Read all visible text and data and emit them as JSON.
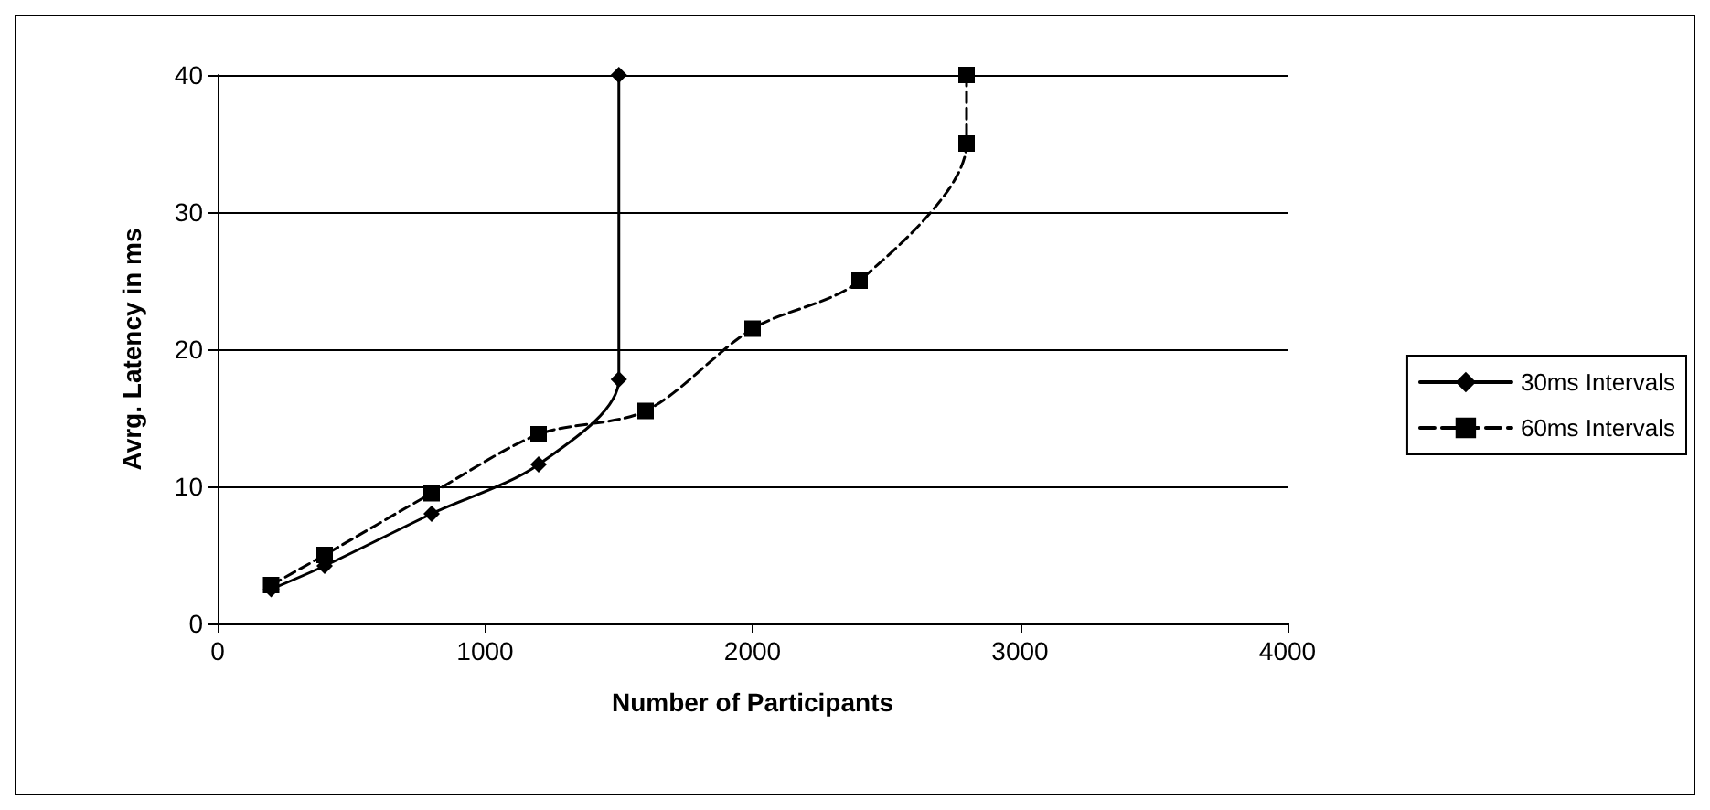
{
  "chart_data": {
    "type": "line",
    "xlabel": "Number of Participants",
    "ylabel": "Avrg. Latency in ms",
    "xlim": [
      0,
      4000
    ],
    "xticks": [
      0,
      1000,
      2000,
      3000,
      4000
    ],
    "ylim": [
      0,
      40
    ],
    "yticks": [
      0,
      10,
      20,
      30,
      40
    ],
    "grid": "y",
    "legend": "right",
    "series": [
      {
        "name": "30ms Intervals",
        "color": "#000000",
        "marker": "diamond",
        "line_style": "solid",
        "x": [
          200,
          400,
          800,
          1200,
          1500,
          1500
        ],
        "values": [
          2.5,
          4.2,
          8,
          11.6,
          17.8,
          40
        ]
      },
      {
        "name": "60ms Intervals",
        "color": "#000000",
        "marker": "square",
        "line_style": "dashed",
        "x": [
          200,
          400,
          800,
          1200,
          1600,
          2000,
          2400,
          2800,
          2800
        ],
        "values": [
          2.8,
          5,
          9.5,
          13.8,
          15.5,
          21.5,
          25,
          35,
          40
        ]
      }
    ]
  }
}
